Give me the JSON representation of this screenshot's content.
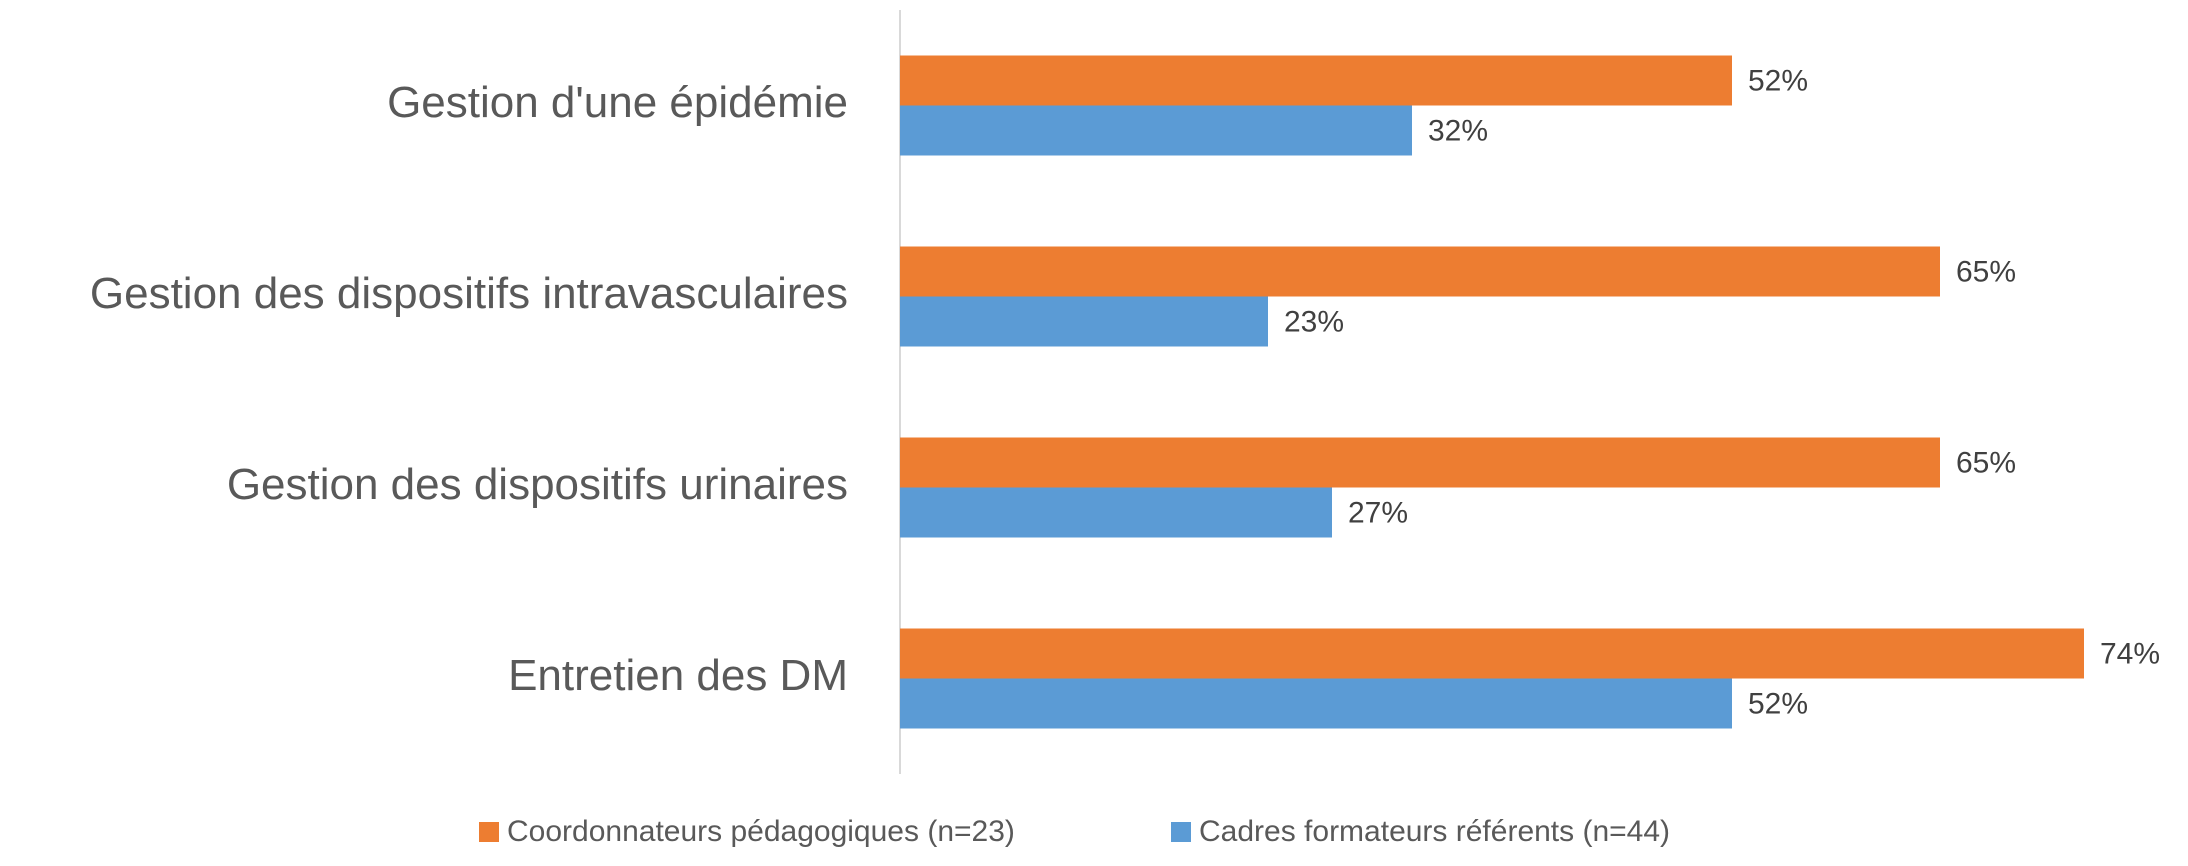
{
  "chart_data": {
    "type": "bar",
    "orientation": "horizontal",
    "categories": [
      "Gestion d'une épidémie",
      "Gestion des dispositifs intravasculaires",
      "Gestion des dispositifs urinaires",
      "Entretien des DM"
    ],
    "series": [
      {
        "name": "Coordonnateurs pédagogiques (n=23)",
        "color": "#ed7d31",
        "values": [
          52,
          65,
          65,
          74
        ],
        "value_labels": [
          "52%",
          "65%",
          "65%",
          "74%"
        ]
      },
      {
        "name": "Cadres formateurs référents (n=44)",
        "color": "#5b9bd5",
        "values": [
          32,
          23,
          27,
          52
        ],
        "value_labels": [
          "32%",
          "23%",
          "27%",
          "52%"
        ]
      }
    ],
    "xlim": [
      0,
      80
    ],
    "legend": "bottom"
  }
}
